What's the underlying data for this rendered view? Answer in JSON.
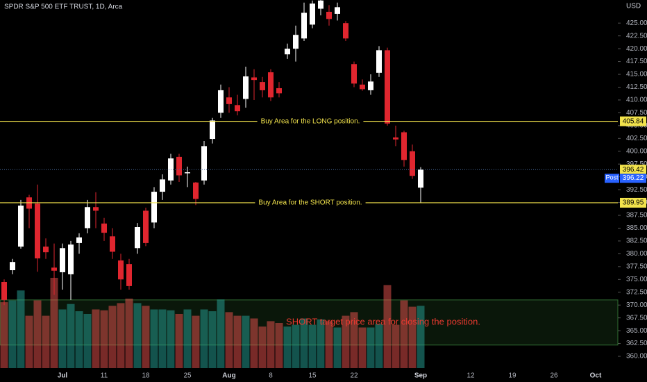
{
  "chart_data": {
    "type": "candlestick",
    "title": "SPDR S&P 500 ETF TRUST, 1D, Arca",
    "currency": "USD",
    "categories": [
      null,
      null,
      null,
      null,
      null,
      null,
      null,
      "Jul",
      null,
      null,
      null,
      null,
      "11",
      null,
      null,
      null,
      null,
      "18",
      null,
      null,
      null,
      null,
      "25",
      null,
      null,
      null,
      null,
      "Aug",
      null,
      null,
      null,
      null,
      "8",
      null,
      null,
      null,
      null,
      "15",
      null,
      null,
      null,
      null,
      "22",
      null,
      null,
      null,
      null,
      null,
      null,
      null,
      "Sep",
      null,
      null,
      null,
      null,
      null,
      "12",
      null,
      null,
      null,
      null,
      "19",
      null,
      null,
      null,
      null,
      "26",
      null,
      null,
      null,
      null,
      "Oct",
      null,
      null
    ],
    "open": [
      374.5,
      376.8,
      381.4,
      391,
      389.8,
      381.4,
      377.3,
      376.4,
      376,
      382.1,
      385,
      389.1,
      385.9,
      383.4,
      378.7,
      378,
      381.1,
      388.4,
      386.1,
      392.1,
      394.3,
      398.9,
      395.7,
      393.9,
      394.3,
      402.4,
      407.5,
      410.5,
      409,
      410.2,
      414.4,
      413.5,
      415.4,
      412.3,
      418.9,
      420,
      422,
      424.7,
      427.8,
      427.2,
      426.8,
      425,
      417,
      413,
      411.9,
      415.3,
      419.7,
      402.7,
      403.7,
      400,
      392.9,
      null,
      null,
      null,
      null,
      null,
      null,
      null,
      null,
      null,
      null,
      null,
      null,
      null,
      null,
      null,
      null,
      null,
      null,
      null,
      null,
      null,
      null,
      null
    ],
    "high": [
      375,
      379,
      390.5,
      391.5,
      393.5,
      383,
      382,
      382,
      382.5,
      384,
      390.5,
      392,
      387,
      385,
      380,
      379,
      386,
      389,
      393,
      395.5,
      399.5,
      399.5,
      397,
      394,
      402,
      406.5,
      413,
      412.5,
      411,
      416.5,
      416,
      414.5,
      416,
      413.5,
      421,
      424.5,
      429,
      429.4,
      429.6,
      428.5,
      429,
      425.4,
      417.5,
      414,
      415,
      420.5,
      420.2,
      405,
      404,
      401.3,
      396.9,
      null,
      null,
      null,
      null,
      null,
      null,
      null,
      null,
      null,
      null,
      null,
      null,
      null,
      null,
      null,
      null,
      null,
      null,
      null,
      null,
      null,
      null,
      null
    ],
    "low": [
      370,
      376,
      381,
      385,
      376.5,
      379,
      372,
      373,
      371,
      380,
      384,
      385,
      382.5,
      379,
      373,
      373,
      380,
      381.5,
      385,
      390.5,
      393.5,
      394,
      393,
      389.5,
      393.5,
      401.5,
      406.5,
      407.5,
      407,
      408.5,
      410,
      410.5,
      409.8,
      410.5,
      418,
      417.5,
      421.5,
      424,
      426.5,
      424.5,
      425.5,
      421.5,
      412.5,
      411.8,
      411,
      414.5,
      405,
      401,
      397,
      394.6,
      389.9,
      null,
      null,
      null,
      null,
      null,
      null,
      null,
      null,
      null,
      null,
      null,
      null,
      null,
      null,
      null,
      null,
      null,
      null,
      null,
      null,
      null,
      null,
      null
    ],
    "close": [
      371,
      378.4,
      389.4,
      388.8,
      379.1,
      380.3,
      376.7,
      381.1,
      381.8,
      383.2,
      389.1,
      388.4,
      384.1,
      380.4,
      375,
      373.7,
      385.2,
      382.1,
      392.1,
      394.5,
      398.6,
      395.3,
      395.9,
      390.7,
      401,
      406,
      411.9,
      409.2,
      407.8,
      414.6,
      413.9,
      411.9,
      410.5,
      411.3,
      420,
      422.7,
      427,
      428.8,
      429.4,
      425.8,
      428.1,
      422,
      413.2,
      412.1,
      413.6,
      419.7,
      405.4,
      402.3,
      398.3,
      395.2,
      396.42,
      null,
      null,
      null,
      null,
      null,
      null,
      null,
      null,
      null,
      null,
      null,
      null,
      null,
      null,
      null,
      null,
      null,
      null,
      null,
      null,
      null,
      null,
      null
    ],
    "volume": [
      73,
      75,
      86,
      58,
      75,
      58,
      100,
      65,
      71,
      63,
      60,
      65,
      64,
      69,
      72,
      77,
      72,
      69,
      65,
      65,
      64,
      60,
      65,
      58,
      65,
      63,
      76,
      62,
      58,
      58,
      55,
      46,
      52,
      50,
      46,
      48,
      55,
      48,
      54,
      52,
      45,
      58,
      62,
      45,
      45,
      49,
      92,
      48,
      75,
      68,
      69,
      null,
      null,
      null,
      null,
      null,
      null,
      null,
      null,
      null,
      null,
      null,
      null,
      null,
      null,
      null,
      null,
      null,
      null,
      null,
      null,
      null,
      null,
      null
    ],
    "up_color": "#ffffff",
    "down_color": "#e0262f",
    "volume_up_color": "rgba(38,166,154,0.5)",
    "volume_down_color": "rgba(239,83,80,0.5)",
    "ylim": [
      357.7,
      429.5
    ],
    "yticks": [
      {
        "value": 360,
        "label": "360.00"
      },
      {
        "value": 362.5,
        "label": "362.50"
      },
      {
        "value": 365,
        "label": "365.00"
      },
      {
        "value": 367.5,
        "label": "367.50"
      },
      {
        "value": 370,
        "label": "370.00"
      },
      {
        "value": 372.5,
        "label": "372.50"
      },
      {
        "value": 375,
        "label": "375.00"
      },
      {
        "value": 377.5,
        "label": "377.50"
      },
      {
        "value": 380,
        "label": "380.00"
      },
      {
        "value": 382.5,
        "label": "382.50"
      },
      {
        "value": 385,
        "label": "385.00"
      },
      {
        "value": 387.5,
        "label": "387.50"
      },
      {
        "value": 390,
        "label": "390.00"
      },
      {
        "value": 392.5,
        "label": "392.50"
      },
      {
        "value": 395,
        "label": "395.00"
      },
      {
        "value": 397.5,
        "label": "397.50"
      },
      {
        "value": 400,
        "label": "400.00"
      },
      {
        "value": 402.5,
        "label": "402.50"
      },
      {
        "value": 405,
        "label": "405.00"
      },
      {
        "value": 407.5,
        "label": "407.50"
      },
      {
        "value": 410,
        "label": "410.00"
      },
      {
        "value": 412.5,
        "label": "412.50"
      },
      {
        "value": 415,
        "label": "415.00"
      },
      {
        "value": 417.5,
        "label": "417.50"
      },
      {
        "value": 420,
        "label": "420.00"
      },
      {
        "value": 422.5,
        "label": "422.50"
      },
      {
        "value": 425,
        "label": "425.00"
      }
    ],
    "horizontal_lines": [
      {
        "value": 405.84,
        "text": "Buy Area for the LONG position.",
        "color": "#f2e34c"
      },
      {
        "value": 389.95,
        "text": "Buy Area for the SHORT position.",
        "color": "#f2e34c"
      }
    ],
    "zone": {
      "top": 371,
      "bottom": 362.2,
      "text": "SHORT target price area for closing the position.",
      "color": "#e8392f"
    },
    "last_price": {
      "value": 396.42,
      "color": "#f2e34c"
    },
    "post_price": {
      "value": 396.22,
      "tag": "Post",
      "color": "#2962ff"
    }
  }
}
